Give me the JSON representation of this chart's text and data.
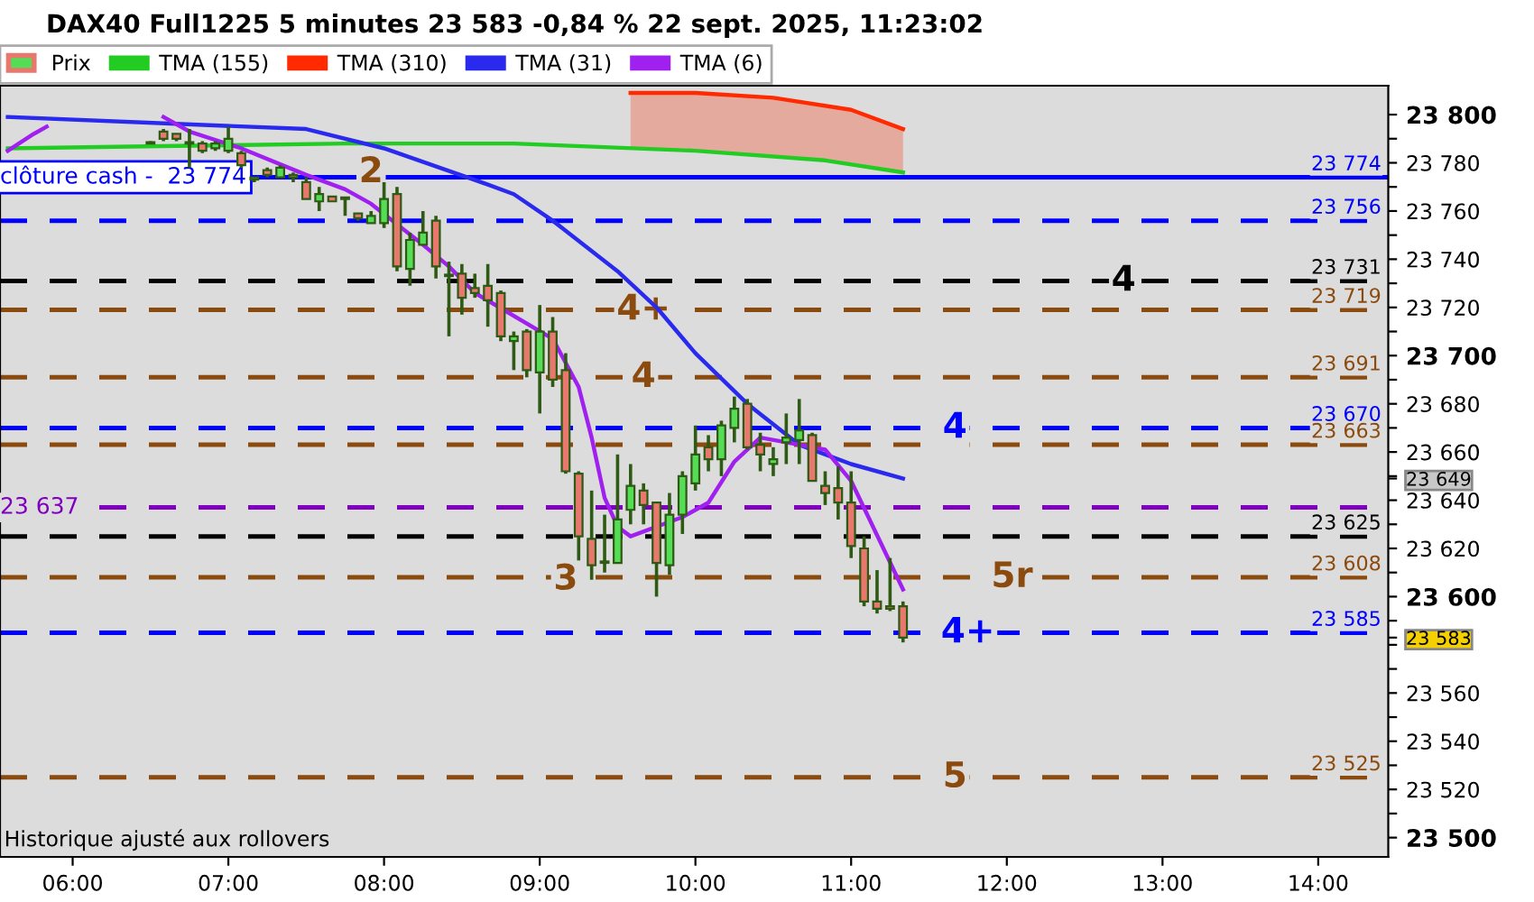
{
  "chart_data": {
    "type": "candlestick",
    "title": "DAX40 Full1225 5 minutes 23 583 -0,84 % 22 sept. 2025, 11:23:02",
    "legend": "top left",
    "xlim": [
      "2025-09-22T05:32",
      "2025-09-22T14:27"
    ],
    "xticks": [
      {
        "value": "2025-09-22T06:00",
        "label": "06:00"
      },
      {
        "value": "2025-09-22T07:00",
        "label": "07:00"
      },
      {
        "value": "2025-09-22T08:00",
        "label": "08:00"
      },
      {
        "value": "2025-09-22T09:00",
        "label": "09:00"
      },
      {
        "value": "2025-09-22T10:00",
        "label": "10:00"
      },
      {
        "value": "2025-09-22T11:00",
        "label": "11:00"
      },
      {
        "value": "2025-09-22T12:00",
        "label": "12:00"
      },
      {
        "value": "2025-09-22T13:00",
        "label": "13:00"
      },
      {
        "value": "2025-09-22T14:00",
        "label": "14:00"
      }
    ],
    "ylim": [
      23492,
      23812
    ],
    "yticks": [
      {
        "value": 23500,
        "label": "23 500"
      },
      {
        "value": 23510,
        "label": null
      },
      {
        "value": 23520,
        "label": "23 520"
      },
      {
        "value": 23530,
        "label": null
      },
      {
        "value": 23540,
        "label": "23 540"
      },
      {
        "value": 23550,
        "label": null
      },
      {
        "value": 23560,
        "label": "23 560"
      },
      {
        "value": 23570,
        "label": null
      },
      {
        "value": 23580,
        "label": null
      },
      {
        "value": 23590,
        "label": null
      },
      {
        "value": 23600,
        "label": "23 600"
      },
      {
        "value": 23610,
        "label": null
      },
      {
        "value": 23620,
        "label": "23 620"
      },
      {
        "value": 23630,
        "label": null
      },
      {
        "value": 23640,
        "label": "23 640"
      },
      {
        "value": 23650,
        "label": null
      },
      {
        "value": 23660,
        "label": "23 660"
      },
      {
        "value": 23670,
        "label": null
      },
      {
        "value": 23680,
        "label": "23 680"
      },
      {
        "value": 23690,
        "label": null
      },
      {
        "value": 23700,
        "label": "23 700"
      },
      {
        "value": 23710,
        "label": null
      },
      {
        "value": 23720,
        "label": "23 720"
      },
      {
        "value": 23730,
        "label": null
      },
      {
        "value": 23740,
        "label": "23 740"
      },
      {
        "value": 23750,
        "label": null
      },
      {
        "value": 23760,
        "label": "23 760"
      },
      {
        "value": 23770,
        "label": null
      },
      {
        "value": 23780,
        "label": "23 780"
      },
      {
        "value": 23790,
        "label": null
      },
      {
        "value": 23800,
        "label": "23 800"
      },
      {
        "value": 23649,
        "label": "23 649"
      },
      {
        "value": 23583,
        "label": "23 583"
      }
    ],
    "series": [
      {
        "type": "candlestick",
        "name": "Prix",
        "color": "#2e5a14",
        "colors": [
          "#55dd55",
          "#e8786e",
          "#e8786e",
          "#55dd55",
          "#e8786e",
          "#55dd55",
          "#55dd55",
          "#e8786e",
          "#55dd55",
          "#e8786e",
          "#55dd55",
          "#e8786e",
          "#e8786e",
          "#55dd55",
          "#e8786e",
          "#55dd55",
          "#e8786e",
          "#55dd55",
          "#55dd55",
          "#e8786e",
          "#55dd55",
          "#55dd55",
          "#e8786e",
          "#55dd55",
          "#e8786e",
          "#e8786e",
          "#e8786e",
          "#e8786e",
          "#55dd55",
          "#e8786e",
          "#55dd55",
          "#e8786e",
          "#e8786e",
          "#e8786e",
          "#e8786e",
          "#55dd55",
          "#55dd55",
          "#55dd55",
          "#e8786e",
          "#e8786e",
          "#55dd55",
          "#55dd55",
          "#55dd55",
          "#e8786e",
          "#55dd55",
          "#55dd55",
          "#e8786e",
          "#e8786e",
          "#55dd55",
          "#55dd55",
          "#55dd55",
          "#e8786e",
          "#e8786e",
          "#e8786e",
          "#e8786e",
          "#e8786e",
          "#e8786e",
          "#e8786e",
          "#e8786e"
        ],
        "x": [
          "2025-09-22T06:30",
          "2025-09-22T06:35",
          "2025-09-22T06:40",
          "2025-09-22T06:45",
          "2025-09-22T06:50",
          "2025-09-22T06:55",
          "2025-09-22T07:00",
          "2025-09-22T07:05",
          "2025-09-22T07:10",
          "2025-09-22T07:15",
          "2025-09-22T07:20",
          "2025-09-22T07:25",
          "2025-09-22T07:30",
          "2025-09-22T07:35",
          "2025-09-22T07:40",
          "2025-09-22T07:45",
          "2025-09-22T07:50",
          "2025-09-22T07:55",
          "2025-09-22T08:00",
          "2025-09-22T08:05",
          "2025-09-22T08:10",
          "2025-09-22T08:15",
          "2025-09-22T08:20",
          "2025-09-22T08:25",
          "2025-09-22T08:30",
          "2025-09-22T08:35",
          "2025-09-22T08:40",
          "2025-09-22T08:45",
          "2025-09-22T08:50",
          "2025-09-22T08:55",
          "2025-09-22T09:00",
          "2025-09-22T09:05",
          "2025-09-22T09:10",
          "2025-09-22T09:15",
          "2025-09-22T09:20",
          "2025-09-22T09:25",
          "2025-09-22T09:30",
          "2025-09-22T09:35",
          "2025-09-22T09:40",
          "2025-09-22T09:45",
          "2025-09-22T09:50",
          "2025-09-22T09:55",
          "2025-09-22T10:00",
          "2025-09-22T10:05",
          "2025-09-22T10:10",
          "2025-09-22T10:15",
          "2025-09-22T10:20",
          "2025-09-22T10:25",
          "2025-09-22T10:30",
          "2025-09-22T10:35",
          "2025-09-22T10:40",
          "2025-09-22T10:45",
          "2025-09-22T10:50",
          "2025-09-22T10:55",
          "2025-09-22T11:00",
          "2025-09-22T11:05",
          "2025-09-22T11:10",
          "2025-09-22T11:15",
          "2025-09-22T11:20"
        ],
        "ohlc": [
          [
            23788,
            23789,
            23788,
            23788
          ],
          [
            23793,
            23794,
            23789,
            23790
          ],
          [
            23792,
            23792,
            23789,
            23790
          ],
          [
            23788,
            23794,
            23778,
            23788
          ],
          [
            23788,
            23789,
            23784,
            23785
          ],
          [
            23786,
            23789,
            23785,
            23788
          ],
          [
            23785,
            23795,
            23784,
            23790
          ],
          [
            23784,
            23785,
            23778,
            23779
          ],
          [
            23773,
            23774,
            23772,
            23774
          ],
          [
            23777,
            23778,
            23774,
            23775
          ],
          [
            23774,
            23779,
            23774,
            23778
          ],
          [
            23775,
            23776,
            23772,
            23774
          ],
          [
            23772,
            23774,
            23765,
            23765
          ],
          [
            23764,
            23770,
            23760,
            23767
          ],
          [
            23766,
            23766,
            23764,
            23764
          ],
          [
            23765,
            23766,
            23758,
            23765
          ],
          [
            23759,
            23759,
            23756,
            23757
          ],
          [
            23755,
            23760,
            23755,
            23758
          ],
          [
            23755,
            23772,
            23753,
            23765
          ],
          [
            23767,
            23770,
            23735,
            23737
          ],
          [
            23736,
            23751,
            23729,
            23748
          ],
          [
            23746,
            23760,
            23746,
            23751
          ],
          [
            23756,
            23758,
            23732,
            23737
          ],
          [
            23733,
            23739,
            23708,
            23733
          ],
          [
            23734,
            23738,
            23717,
            23724
          ],
          [
            23728,
            23734,
            23724,
            23726
          ],
          [
            23729,
            23738,
            23712,
            23723
          ],
          [
            23726,
            23727,
            23706,
            23708
          ],
          [
            23706,
            23710,
            23694,
            23708
          ],
          [
            23710,
            23711,
            23691,
            23694
          ],
          [
            23693,
            23721,
            23676,
            23710
          ],
          [
            23710,
            23716,
            23687,
            23690
          ],
          [
            23694,
            23701,
            23651,
            23652
          ],
          [
            23651,
            23652,
            23615,
            23625
          ],
          [
            23624,
            23644,
            23607,
            23613
          ],
          [
            23614,
            23634,
            23610,
            23614
          ],
          [
            23614,
            23659,
            23614,
            23632
          ],
          [
            23636,
            23655,
            23630,
            23646
          ],
          [
            23644,
            23647,
            23630,
            23638
          ],
          [
            23639,
            23639,
            23600,
            23614
          ],
          [
            23613,
            23643,
            23609,
            23634
          ],
          [
            23634,
            23652,
            23626,
            23650
          ],
          [
            23647,
            23671,
            23644,
            23659
          ],
          [
            23662,
            23667,
            23652,
            23657
          ],
          [
            23657,
            23673,
            23650,
            23671
          ],
          [
            23670,
            23683,
            23664,
            23678
          ],
          [
            23680,
            23682,
            23661,
            23662
          ],
          [
            23663,
            23668,
            23652,
            23659
          ],
          [
            23655,
            23662,
            23650,
            23657
          ],
          [
            23664,
            23676,
            23655,
            23666
          ],
          [
            23665,
            23682,
            23655,
            23669
          ],
          [
            23667,
            23668,
            23648,
            23648
          ],
          [
            23646,
            23652,
            23638,
            23643
          ],
          [
            23645,
            23654,
            23632,
            23639
          ],
          [
            23639,
            23652,
            23616,
            23621
          ],
          [
            23620,
            23625,
            23596,
            23598
          ],
          [
            23598,
            23611,
            23593,
            23595
          ],
          [
            23596,
            23616,
            23594,
            23595
          ],
          [
            23596,
            23598,
            23581,
            23583
          ]
        ]
      },
      {
        "type": "line",
        "name": "TMA (155)",
        "color": "#22cc22",
        "x": [
          "2025-09-22T05:35",
          "2025-09-22T06:40",
          "2025-09-22T07:45",
          "2025-09-22T08:50",
          "2025-09-22T10:00",
          "2025-09-22T10:50",
          "2025-09-22T11:20"
        ],
        "values": [
          23786,
          23787,
          23788,
          23788,
          23785,
          23781,
          23776
        ]
      },
      {
        "type": "line",
        "name": "TMA (310)",
        "color": "#ff2a00",
        "x": [
          "2025-09-22T09:35",
          "2025-09-22T10:00",
          "2025-09-22T10:30",
          "2025-09-22T11:00",
          "2025-09-22T11:20"
        ],
        "values": [
          23809,
          23809,
          23807,
          23802,
          23794
        ],
        "lower": [
          23786,
          23785,
          23783,
          23780,
          23776
        ],
        "upper": [
          23809,
          23809,
          23807,
          23802,
          23794
        ]
      },
      {
        "type": "line",
        "name": "TMA (31)",
        "color": "#2a2aee",
        "x": [
          "2025-09-22T05:35",
          "2025-09-22T07:30",
          "2025-09-22T08:00",
          "2025-09-22T08:40",
          "2025-09-22T08:50",
          "2025-09-22T09:05",
          "2025-09-22T09:30",
          "2025-09-22T09:45",
          "2025-09-22T10:00",
          "2025-09-22T10:20",
          "2025-09-22T10:40",
          "2025-09-22T11:00",
          "2025-09-22T11:20"
        ],
        "values": [
          23799,
          23794,
          23786,
          23771,
          23767,
          23756,
          23735,
          23720,
          23701,
          23680,
          23663,
          23655,
          23649
        ]
      },
      {
        "type": "line",
        "name": "TMA (6)",
        "color": "#a020f0",
        "x": [
          "2025-09-22T05:35",
          "2025-09-22T05:45",
          "2025-09-22T05:50",
          "2025-09-22T06:00",
          "2025-09-22T06:35",
          "2025-09-22T06:45",
          "2025-09-22T07:05",
          "2025-09-22T07:30",
          "2025-09-22T07:45",
          "2025-09-22T07:55",
          "2025-09-22T08:15",
          "2025-09-22T08:25",
          "2025-09-22T08:35",
          "2025-09-22T09:05",
          "2025-09-22T09:15",
          "2025-09-22T09:20",
          "2025-09-22T09:25",
          "2025-09-22T09:30",
          "2025-09-22T09:35",
          "2025-09-22T09:55",
          "2025-09-22T10:05",
          "2025-09-22T10:15",
          "2025-09-22T10:25",
          "2025-09-22T10:35",
          "2025-09-22T10:50",
          "2025-09-22T11:00",
          "2025-09-22T11:20"
        ],
        "values": [
          23785,
          23792,
          23795,
          null,
          23799,
          23793,
          23786,
          23775,
          23769,
          23763,
          23746,
          23737,
          23726,
          23707,
          23687,
          23666,
          23641,
          23629,
          23625,
          23633,
          23639,
          23656,
          23666,
          23664,
          23661,
          23648,
          23603
        ]
      }
    ],
    "ref_lines": [
      {
        "axis": "y",
        "value": 23774,
        "label": "23 774",
        "color": "#0000ff",
        "line_style": "solid"
      },
      {
        "axis": "y",
        "value": 23756,
        "label": "23 756",
        "color": "#0000ff",
        "line_style": "dashed"
      },
      {
        "axis": "y",
        "value": 23731,
        "label": "23 731",
        "color": "#000000",
        "line_style": "dashed"
      },
      {
        "axis": "y",
        "value": 23719,
        "label": "23 719",
        "color": "#8b4a0e",
        "line_style": "dashed"
      },
      {
        "axis": "y",
        "value": 23691,
        "label": "23 691",
        "color": "#8b4a0e",
        "line_style": "dashed"
      },
      {
        "axis": "y",
        "value": 23670,
        "label": "23 670",
        "color": "#0000ff",
        "line_style": "dashed"
      },
      {
        "axis": "y",
        "value": 23663,
        "label": "23 663",
        "color": "#8b4a0e",
        "line_style": "dashed"
      },
      {
        "axis": "y",
        "value": 23637,
        "label": null,
        "color": "#8000c0",
        "line_style": "dashed"
      },
      {
        "axis": "y",
        "value": 23625,
        "label": "23 625",
        "color": "#000000",
        "line_style": "dashed"
      },
      {
        "axis": "y",
        "value": 23608,
        "label": "23 608",
        "color": "#8b4a0e",
        "line_style": "dashed"
      },
      {
        "axis": "y",
        "value": 23585,
        "label": "23 585",
        "color": "#0000ff",
        "line_style": "dashed"
      },
      {
        "axis": "y",
        "value": 23525,
        "label": "23 525",
        "color": "#8b4a0e",
        "line_style": "dashed"
      }
    ],
    "annotations": [
      {
        "text": "clôture cash -  23 774",
        "y": 23774
      },
      {
        "text": "23 637",
        "y": 23637
      },
      {
        "text": "2",
        "x": "2025-09-22T07:55",
        "y": 23776
      },
      {
        "text": "3",
        "x": "2025-09-22T09:10",
        "y": 23607
      },
      {
        "text": "4+",
        "x": "2025-09-22T09:40",
        "y": 23719
      },
      {
        "text": "4",
        "x": "2025-09-22T09:40",
        "y": 23691
      },
      {
        "text": "4",
        "x": "2025-09-22T11:40",
        "y": 23670
      },
      {
        "text": "4",
        "x": "2025-09-22T12:45",
        "y": 23731
      },
      {
        "text": "5r",
        "x": "2025-09-22T12:02",
        "y": 23608
      },
      {
        "text": "4+",
        "x": "2025-09-22T11:45",
        "y": 23585
      },
      {
        "text": "5",
        "x": "2025-09-22T11:40",
        "y": 23525
      },
      "Historique ajusté aux rollovers"
    ]
  }
}
